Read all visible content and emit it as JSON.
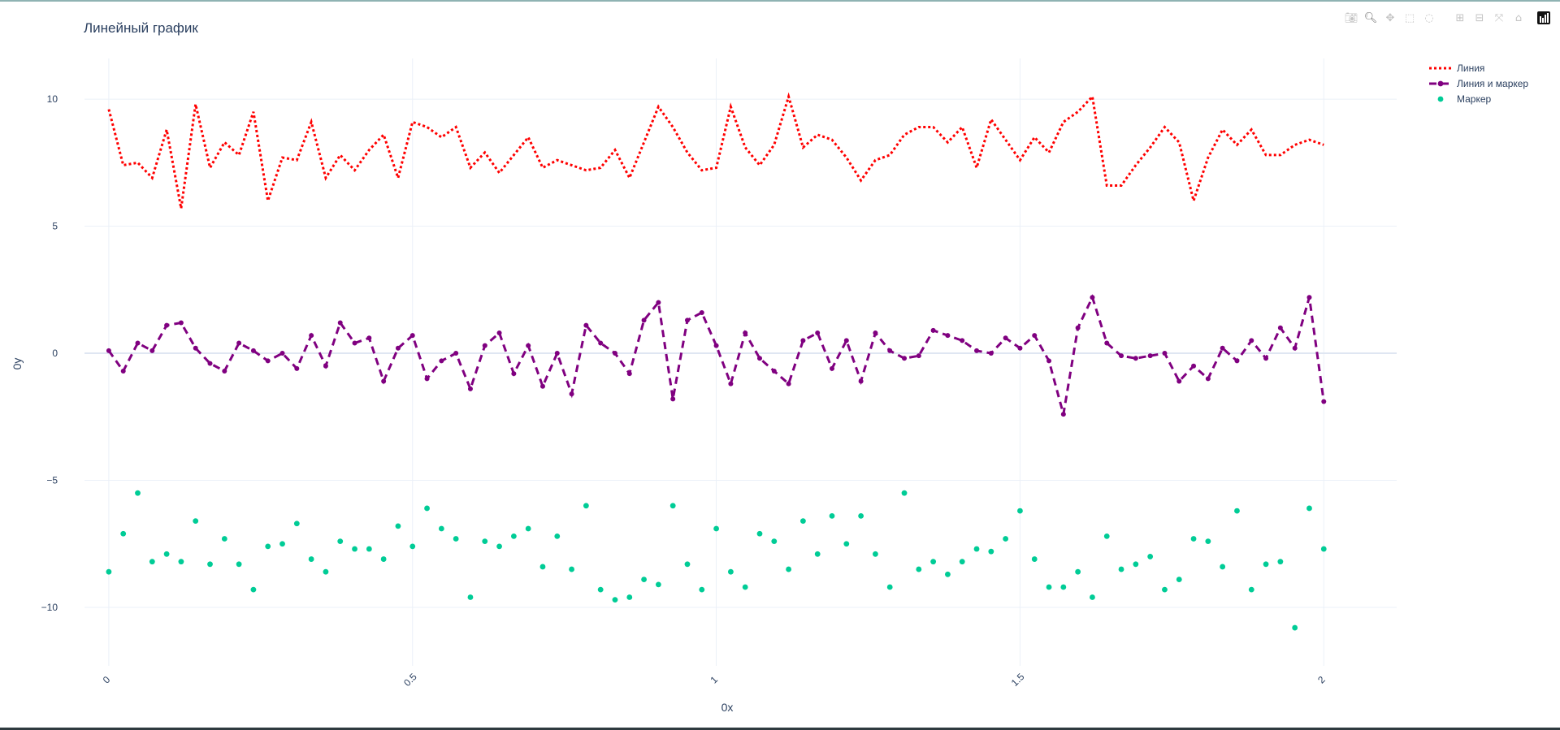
{
  "chart_data": {
    "type": "line",
    "title": "Линейный график",
    "xlabel": "0x",
    "ylabel": "0y",
    "xlim": [
      -0.04,
      2.12
    ],
    "ylim": [
      -12.3,
      11.6
    ],
    "grid": true,
    "legend_position": "top-right",
    "x_ticks": [
      0,
      0.5,
      1,
      1.5,
      2
    ],
    "x_tick_labels": [
      "0",
      "0.5",
      "1",
      "1.5",
      "2"
    ],
    "y_ticks": [
      10,
      5,
      0,
      -5,
      -10
    ],
    "y_tick_labels": [
      "10",
      "5",
      "0",
      "−5",
      "−10"
    ],
    "x_start": 0,
    "x_step": 0.0238095,
    "series": [
      {
        "name": "Линия",
        "mode": "lines",
        "color": "#ff0000",
        "dash": "dot",
        "values": [
          9.6,
          7.4,
          7.5,
          6.9,
          8.8,
          5.7,
          9.8,
          7.3,
          8.3,
          7.8,
          9.5,
          6.0,
          7.7,
          7.6,
          9.1,
          6.9,
          7.8,
          7.2,
          8.0,
          8.6,
          6.9,
          9.1,
          8.9,
          8.5,
          8.9,
          7.3,
          7.9,
          7.1,
          7.8,
          8.5,
          7.3,
          7.6,
          7.4,
          7.2,
          7.3,
          8.0,
          6.9,
          8.3,
          9.7,
          8.9,
          7.9,
          7.2,
          7.3,
          9.7,
          8.1,
          7.4,
          8.2,
          10.1,
          8.1,
          8.6,
          8.4,
          7.7,
          6.8,
          7.6,
          7.8,
          8.6,
          8.9,
          8.9,
          8.3,
          8.9,
          7.3,
          9.2,
          8.4,
          7.6,
          8.5,
          7.9,
          9.1,
          9.5,
          10.1,
          6.6,
          6.6,
          7.4,
          8.1,
          8.9,
          8.3,
          6.0,
          7.7,
          8.8,
          8.2,
          8.8,
          7.8,
          7.8,
          8.2,
          8.4,
          8.2
        ]
      },
      {
        "name": "Линия и маркер",
        "mode": "lines+markers",
        "color": "#800080",
        "dash": "dash",
        "values": [
          0.1,
          -0.7,
          0.4,
          0.1,
          1.1,
          1.2,
          0.2,
          -0.4,
          -0.7,
          0.4,
          0.1,
          -0.3,
          0.0,
          -0.6,
          0.7,
          -0.5,
          1.2,
          0.4,
          0.6,
          -1.1,
          0.2,
          0.7,
          -1.0,
          -0.3,
          0.0,
          -1.4,
          0.3,
          0.8,
          -0.8,
          0.3,
          -1.3,
          0.0,
          -1.6,
          1.1,
          0.4,
          0.0,
          -0.8,
          1.3,
          2.0,
          -1.8,
          1.3,
          1.6,
          0.3,
          -1.2,
          0.8,
          -0.2,
          -0.7,
          -1.2,
          0.5,
          0.8,
          -0.6,
          0.5,
          -1.1,
          0.8,
          0.1,
          -0.2,
          -0.1,
          0.9,
          0.7,
          0.5,
          0.1,
          0.0,
          0.6,
          0.2,
          0.7,
          -0.3,
          -2.4,
          1.0,
          2.2,
          0.4,
          -0.1,
          -0.2,
          -0.1,
          0.0,
          -1.1,
          -0.5,
          -1.0,
          0.2,
          -0.3,
          0.5,
          -0.2,
          1.0,
          0.2,
          2.2,
          -1.9
        ]
      },
      {
        "name": "Маркер",
        "mode": "markers",
        "color": "#00cc96",
        "dash": "solid",
        "values": [
          -8.6,
          -7.1,
          -5.5,
          -8.2,
          -7.9,
          -8.2,
          -6.6,
          -8.3,
          -7.3,
          -8.3,
          -9.3,
          -7.6,
          -7.5,
          -6.7,
          -8.1,
          -8.6,
          -7.4,
          -7.7,
          -7.7,
          -8.1,
          -6.8,
          -7.6,
          -6.1,
          -6.9,
          -7.3,
          -9.6,
          -7.4,
          -7.6,
          -7.2,
          -6.9,
          -8.4,
          -7.2,
          -8.5,
          -6.0,
          -9.3,
          -9.7,
          -9.6,
          -8.9,
          -9.1,
          -6.0,
          -8.3,
          -9.3,
          -6.9,
          -8.6,
          -9.2,
          -7.1,
          -7.4,
          -8.5,
          -6.6,
          -7.9,
          -6.4,
          -7.5,
          -6.4,
          -7.9,
          -9.2,
          -5.5,
          -8.5,
          -8.2,
          -8.7,
          -8.2,
          -7.7,
          -7.8,
          -7.3,
          -6.2,
          -8.1,
          -9.2,
          -9.2,
          -8.6,
          -9.6,
          -7.2,
          -8.5,
          -8.3,
          -8.0,
          -9.3,
          -8.9,
          -7.3,
          -7.4,
          -8.4,
          -6.2,
          -9.3,
          -8.3,
          -8.2,
          -10.8,
          -6.1,
          -7.7
        ]
      }
    ]
  },
  "modebar": {
    "buttons": [
      {
        "icon": "camera-icon",
        "glyph": "📷︎",
        "active": false
      },
      {
        "icon": "zoom-icon",
        "glyph": "🔍︎",
        "active": true
      },
      {
        "icon": "pan-icon",
        "glyph": "✥",
        "active": false
      },
      {
        "icon": "box-select-icon",
        "glyph": "⬚",
        "active": false
      },
      {
        "icon": "lasso-icon",
        "glyph": "◌",
        "active": false
      },
      {
        "icon": "zoom-in-icon",
        "glyph": "⊞",
        "active": false
      },
      {
        "icon": "zoom-out-icon",
        "glyph": "⊟",
        "active": false
      },
      {
        "icon": "autoscale-icon",
        "glyph": "⤧",
        "active": false
      },
      {
        "icon": "home-icon",
        "glyph": "⌂",
        "active": false
      }
    ]
  }
}
